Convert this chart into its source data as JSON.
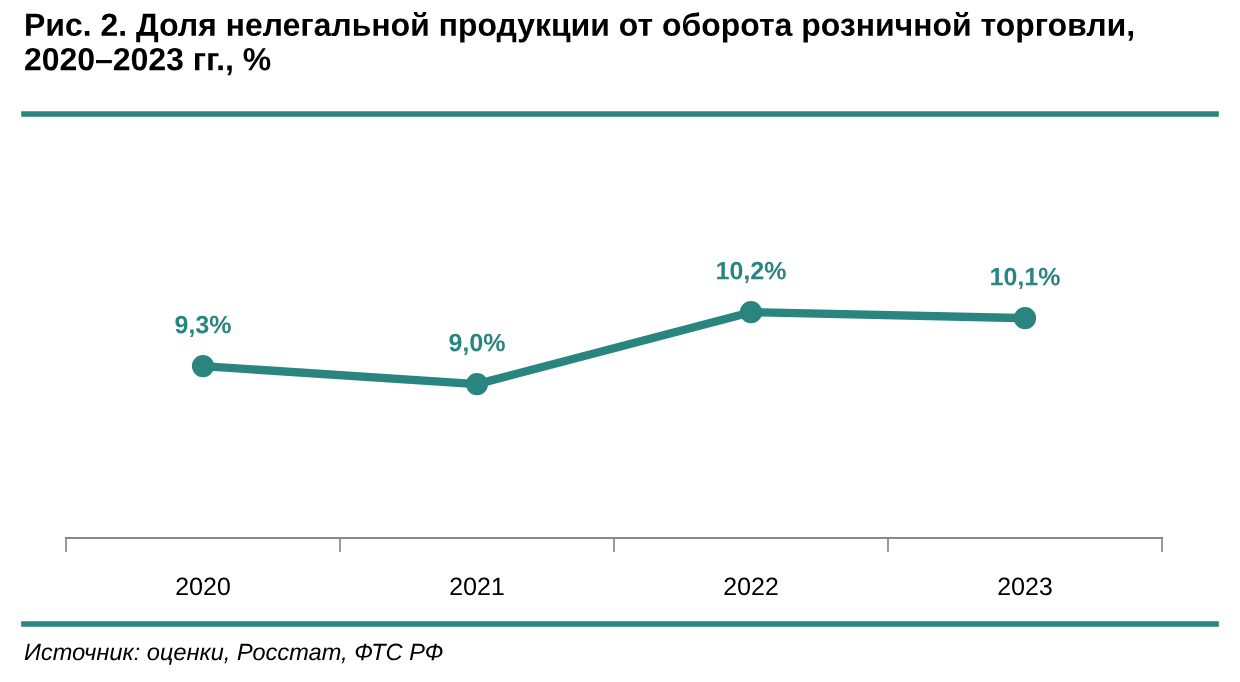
{
  "chart_data": {
    "type": "line",
    "title": "Рис. 2. Доля нелегальной продукции от оборота розничной торговли, 2020–2023 гг., %",
    "categories": [
      "2020",
      "2021",
      "2022",
      "2023"
    ],
    "series": [
      {
        "color": "#2a8580",
        "values": [
          9.3,
          9.0,
          10.2,
          10.1
        ],
        "value_labels": [
          "9,3%",
          "9,0%",
          "10,2%",
          "10,1%"
        ]
      }
    ],
    "tick_labels": "x",
    "marker": "circle",
    "line_style": "solid",
    "annotations": [
      "Источник: оценки, Росстат, ФТС РФ"
    ]
  }
}
